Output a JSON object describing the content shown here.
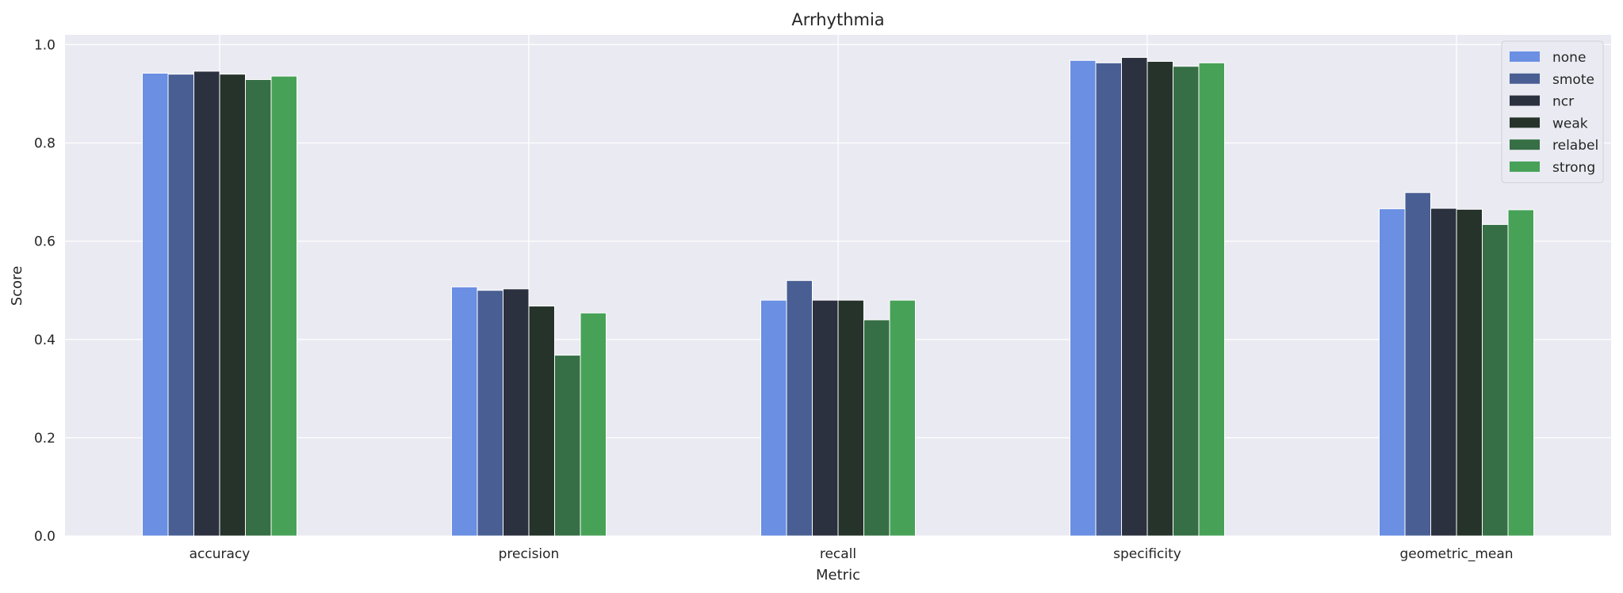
{
  "chart_data": {
    "type": "bar",
    "title": "Arrhythmia",
    "xlabel": "Metric",
    "ylabel": "Score",
    "categories": [
      "accuracy",
      "precision",
      "recall",
      "specificity",
      "geometric_mean"
    ],
    "ylim": [
      0,
      1.02
    ],
    "yticks": [
      "0.0",
      "0.2",
      "0.4",
      "0.6",
      "0.8",
      "1.0"
    ],
    "grid": true,
    "legend_position": "top-right",
    "series": [
      {
        "name": "none",
        "color": "#6a8fe3",
        "values": [
          0.942,
          0.507,
          0.48,
          0.968,
          0.666
        ]
      },
      {
        "name": "smote",
        "color": "#495f93",
        "values": [
          0.94,
          0.5,
          0.52,
          0.963,
          0.699
        ]
      },
      {
        "name": "ncr",
        "color": "#2c3140",
        "values": [
          0.946,
          0.503,
          0.48,
          0.974,
          0.667
        ]
      },
      {
        "name": "weak",
        "color": "#25332b",
        "values": [
          0.94,
          0.468,
          0.48,
          0.966,
          0.665
        ]
      },
      {
        "name": "relabel",
        "color": "#366f45",
        "values": [
          0.929,
          0.368,
          0.44,
          0.956,
          0.634
        ]
      },
      {
        "name": "strong",
        "color": "#47a258",
        "values": [
          0.936,
          0.454,
          0.48,
          0.963,
          0.664
        ]
      }
    ]
  }
}
